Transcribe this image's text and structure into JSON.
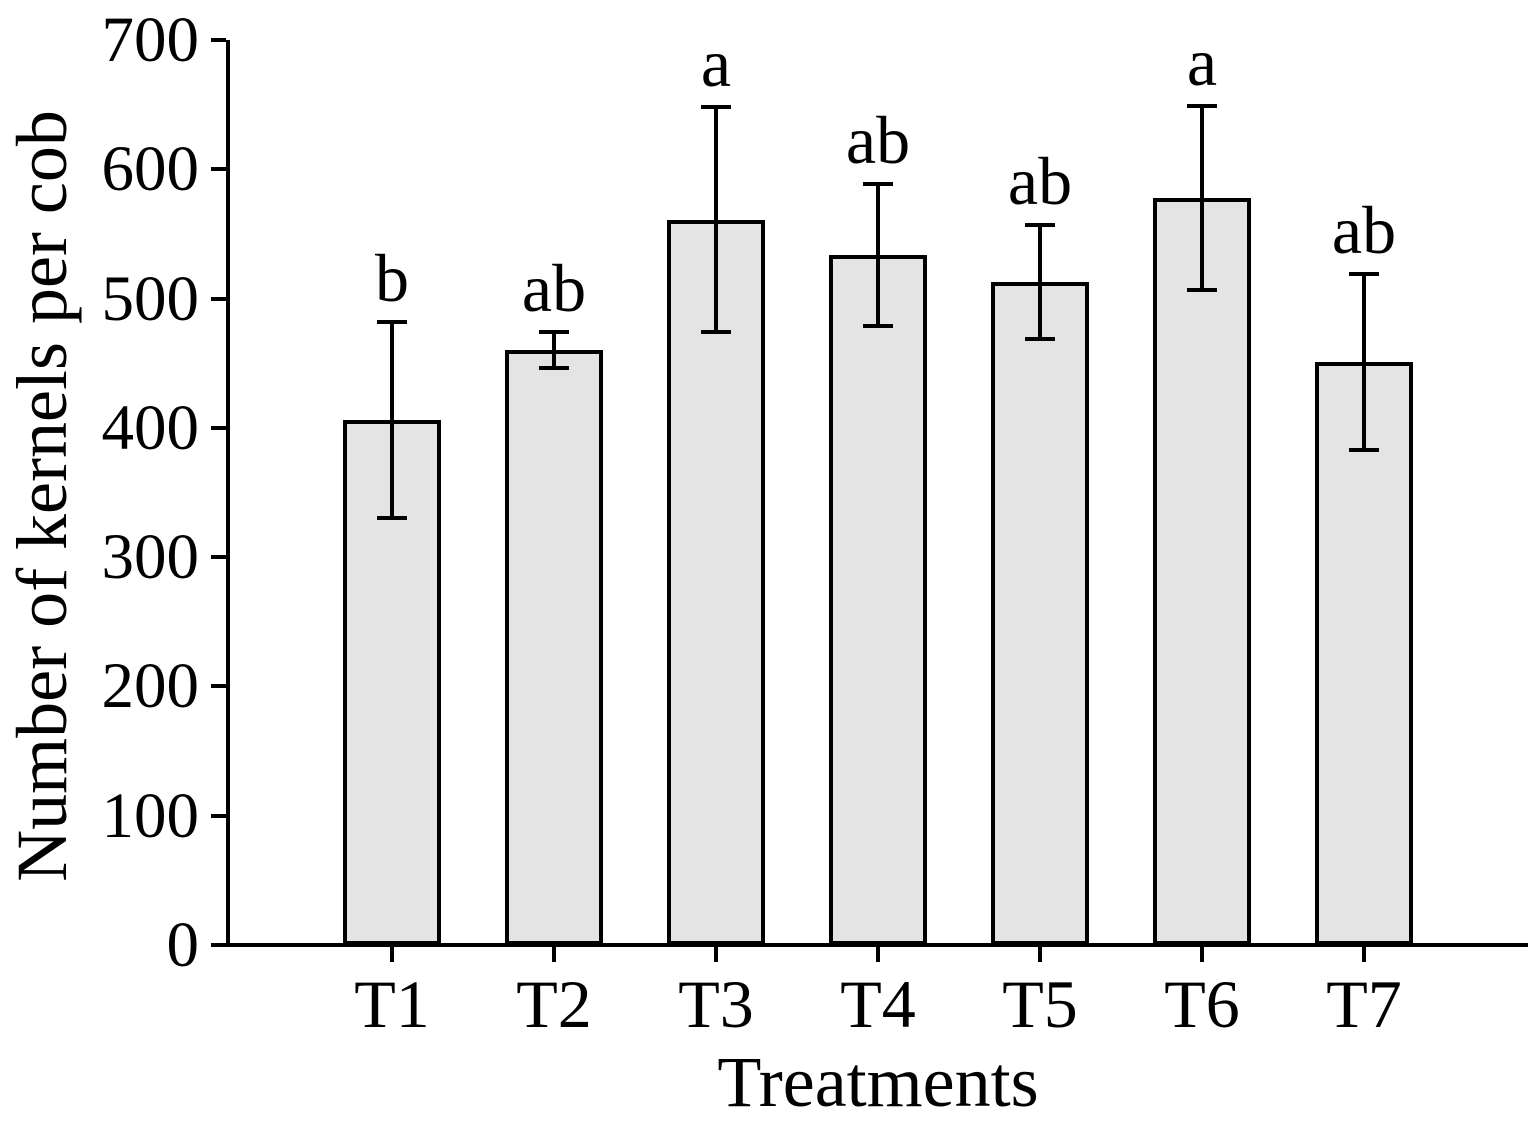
{
  "chart_data": {
    "type": "bar",
    "title": "",
    "xlabel": "Treatments",
    "ylabel": "Number of kernels per cob",
    "categories": [
      "T1",
      "T2",
      "T3",
      "T4",
      "T5",
      "T6",
      "T7"
    ],
    "series": [
      {
        "name": "Number of kernels per cob",
        "values": [
          406,
          460,
          561,
          534,
          513,
          578,
          451
        ],
        "error_bars": [
          76,
          14,
          87,
          55,
          44,
          71,
          68
        ],
        "significance_letters": [
          "b",
          "ab",
          "a",
          "ab",
          "ab",
          "a",
          "ab"
        ]
      }
    ],
    "ylim": [
      0,
      700
    ],
    "yticks": [
      0,
      100,
      200,
      300,
      400,
      500,
      600,
      700
    ],
    "grid": false,
    "legend_position": "none",
    "colors": {
      "bar_fill": "#e4e4e4",
      "bar_stroke": "#000000",
      "error_bar": "#000000",
      "axis": "#000000",
      "text": "#000000",
      "background": "#ffffff"
    }
  }
}
